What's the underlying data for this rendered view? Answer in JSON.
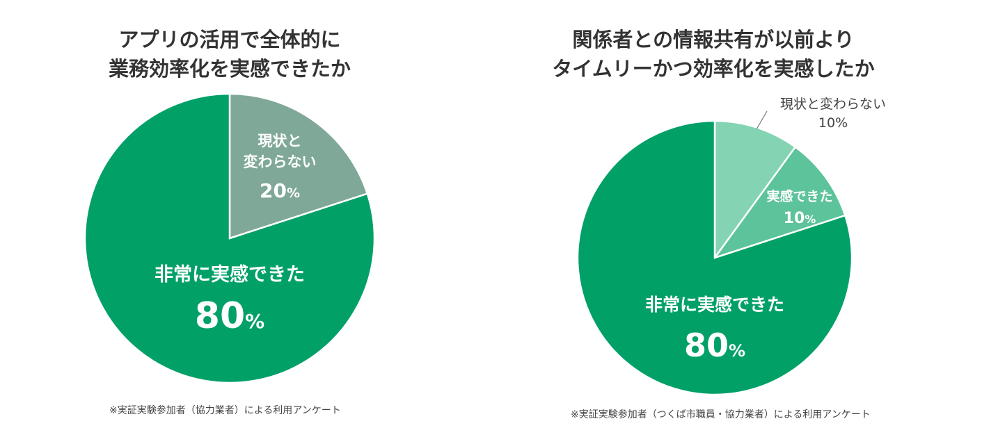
{
  "chart_data": [
    {
      "type": "pie",
      "title_lines": [
        "アプリの活用で全体的に",
        "業務効率化を実感できたか"
      ],
      "slices": [
        {
          "label_lines": [
            "現状と",
            "変わらない"
          ],
          "value": 20,
          "value_text": "20",
          "unit": "%",
          "color": "#7fa898"
        },
        {
          "label_lines": [
            "非常に実感できた"
          ],
          "value": 80,
          "value_text": "80",
          "unit": "%",
          "color": "#00a067"
        }
      ],
      "note": "※実証実験参加者（協力業者）による利用アンケート"
    },
    {
      "type": "pie",
      "title_lines": [
        "関係者との情報共有が以前より",
        "タイムリーかつ効率化を実感したか"
      ],
      "slices": [
        {
          "label_lines": [
            "現状と変わらない"
          ],
          "value": 10,
          "value_text": "10",
          "unit": "%",
          "color": "#84d4b4"
        },
        {
          "label_lines": [
            "実感できた"
          ],
          "value": 10,
          "value_text": "10",
          "unit": "%",
          "color": "#5cc39a"
        },
        {
          "label_lines": [
            "非常に実感できた"
          ],
          "value": 80,
          "value_text": "80",
          "unit": "%",
          "color": "#00a067"
        }
      ],
      "note": "※実証実験参加者（つくば市職員・協力業者）による利用アンケート"
    }
  ]
}
